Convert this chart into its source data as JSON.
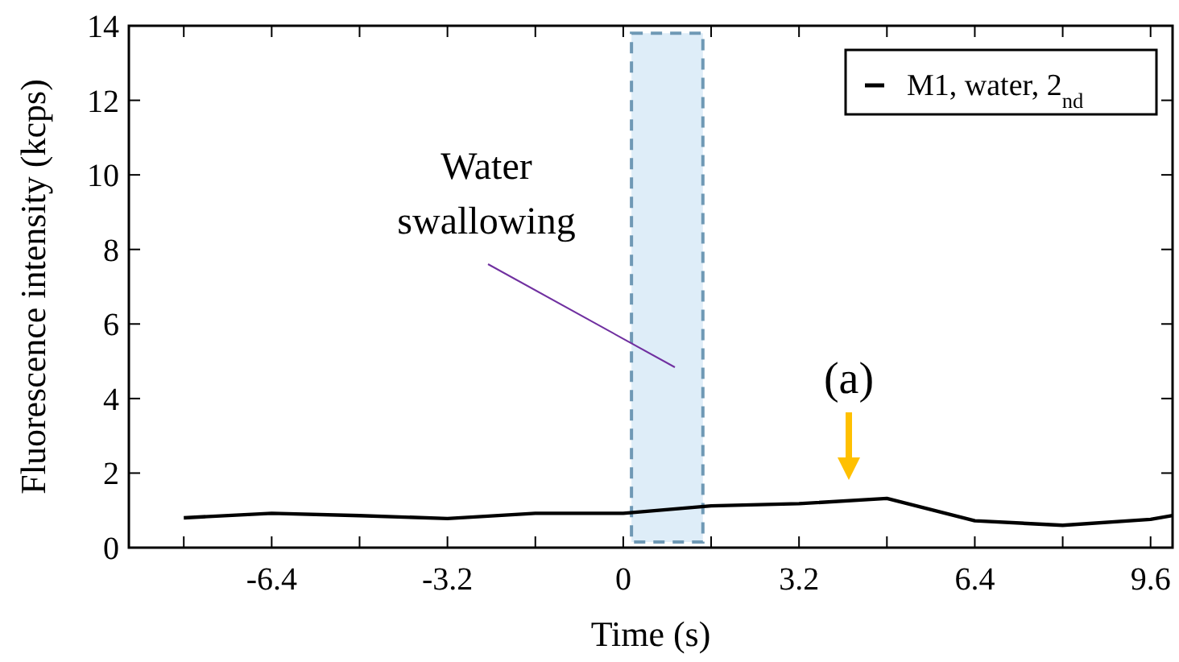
{
  "chart_data": {
    "type": "line",
    "xlabel": "Time (s)",
    "ylabel": "Fluorescence intensity (kcps)",
    "x": [
      -8,
      -6.4,
      -4.8,
      -3.2,
      -1.6,
      0,
      1.6,
      3.2,
      4.8,
      6.4,
      8,
      9.6,
      10
    ],
    "series": [
      {
        "name": "M1, water, 2$_{nd}$",
        "color": "#000000",
        "values": [
          0.8,
          0.92,
          0.86,
          0.78,
          0.92,
          0.92,
          1.12,
          1.18,
          1.32,
          0.72,
          0.6,
          0.76,
          0.86
        ]
      }
    ],
    "xlim": [
      -9,
      10
    ],
    "ylim": [
      0,
      14
    ],
    "xticks": [
      {
        "value": -8,
        "label": null
      },
      {
        "value": -6.4,
        "label": "-6.4"
      },
      {
        "value": -4.8,
        "label": null
      },
      {
        "value": -3.2,
        "label": "-3.2"
      },
      {
        "value": -1.6,
        "label": null
      },
      0,
      {
        "value": 1.6,
        "label": null
      },
      3.2,
      {
        "value": 4.8,
        "label": null
      },
      6.4,
      {
        "value": 8,
        "label": null
      },
      9.6
    ],
    "yticks": [
      0,
      2,
      4,
      6,
      8,
      10,
      12,
      14
    ],
    "bands": [
      {
        "axis": "x",
        "from": 0.15,
        "to": 1.45,
        "label": null,
        "color": "#deedf8"
      }
    ],
    "annotations": [
      "Water swallowing",
      "(a)"
    ],
    "legend": "top right",
    "grid": false,
    "line_style": "solid",
    "marker": "none"
  }
}
